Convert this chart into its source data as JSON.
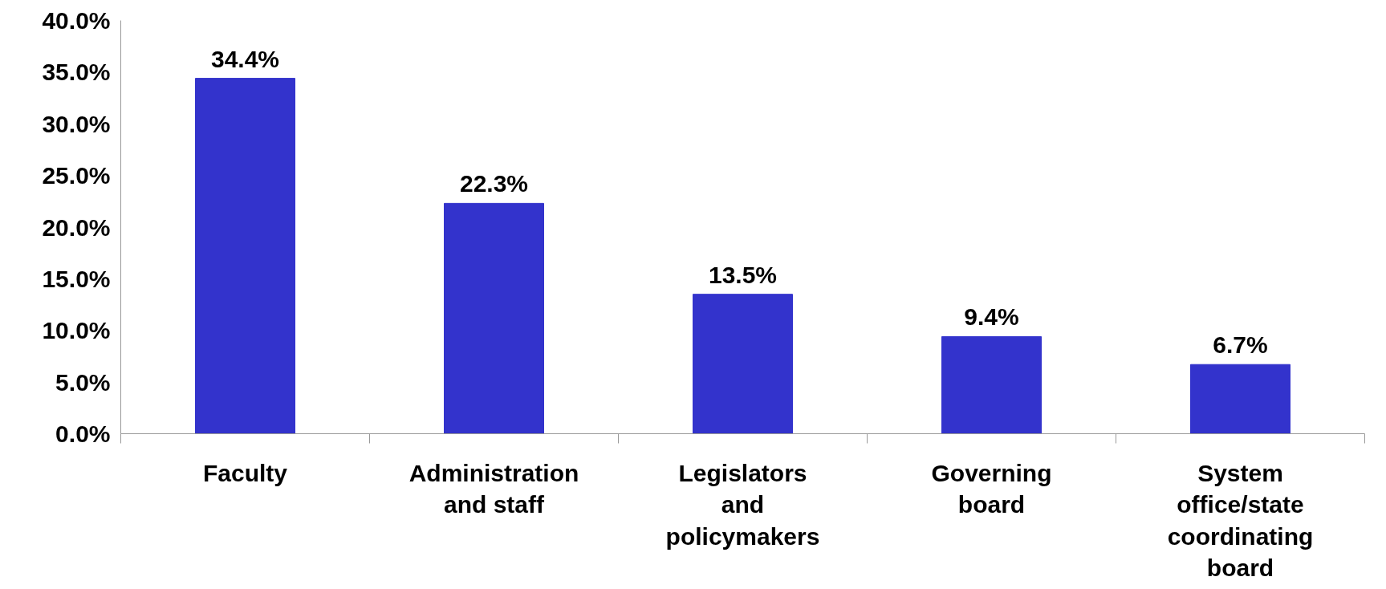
{
  "chart_data": {
    "type": "bar",
    "categories": [
      "Faculty",
      "Administration and staff",
      "Legislators and policymakers",
      "Governing board",
      "System office/state coordinating board"
    ],
    "values": [
      34.4,
      22.3,
      13.5,
      9.4,
      6.7
    ],
    "value_labels": [
      "34.4%",
      "22.3%",
      "13.5%",
      "9.4%",
      "6.7%"
    ],
    "color": "#3333cc",
    "ylim": [
      0,
      40
    ],
    "yticks": [
      {
        "value": 0,
        "label": "0.0%"
      },
      {
        "value": 5,
        "label": "5.0%"
      },
      {
        "value": 10,
        "label": "10.0%"
      },
      {
        "value": 15,
        "label": "15.0%"
      },
      {
        "value": 20,
        "label": "20.0%"
      },
      {
        "value": 25,
        "label": "25.0%"
      },
      {
        "value": 30,
        "label": "30.0%"
      },
      {
        "value": 35,
        "label": "35.0%"
      },
      {
        "value": 40,
        "label": "40.0%"
      }
    ],
    "grid": false
  }
}
